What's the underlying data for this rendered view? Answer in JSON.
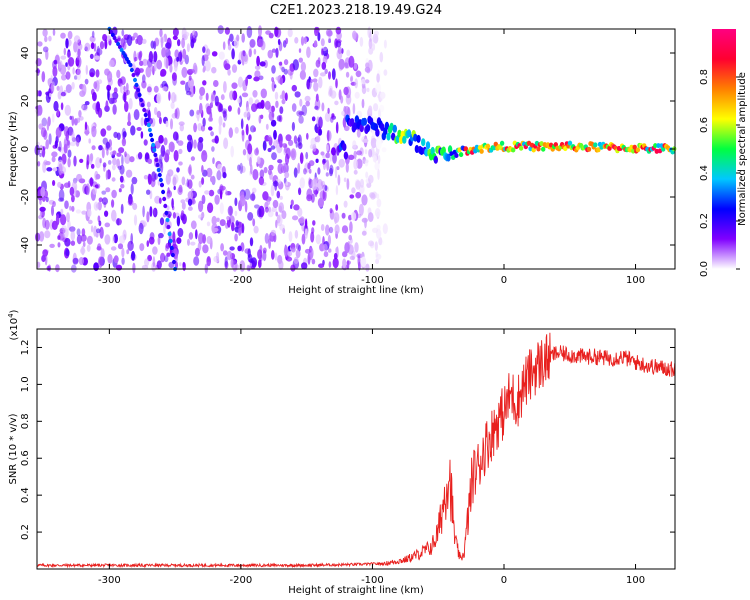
{
  "title": "C2E1.2023.218.19.49.G24",
  "chart_data": [
    {
      "type": "heatmap",
      "xlabel": "Height of straight line (km)",
      "ylabel": "Frequency (Hz)",
      "xlim": [
        -355,
        130
      ],
      "ylim": [
        -50,
        50
      ],
      "xticks": [
        -300,
        -200,
        -100,
        0,
        100
      ],
      "yticks": [
        -40,
        -20,
        0,
        20,
        40
      ],
      "colorbar": {
        "label": "Normalized spectral amplitude",
        "range": [
          0.0,
          1.0
        ],
        "ticks": [
          0.0,
          0.2,
          0.4,
          0.6,
          0.8
        ],
        "colors": [
          "#ffffff",
          "#8000ff",
          "#0000ff",
          "#00c8ff",
          "#00ff40",
          "#ffff00",
          "#ff8000",
          "#ff0030",
          "#ff0080"
        ]
      },
      "features": {
        "diagonal_track": [
          [
            -300,
            50
          ],
          [
            -284,
            35
          ],
          [
            -270,
            10
          ],
          [
            -260,
            -15
          ],
          [
            -250,
            -50
          ]
        ],
        "central_ridge": [
          [
            -120,
            12
          ],
          [
            -90,
            8
          ],
          [
            -70,
            4
          ],
          [
            -60,
            0
          ],
          [
            -45,
            -3
          ],
          [
            -25,
            0
          ],
          [
            0,
            1
          ],
          [
            50,
            1
          ],
          [
            130,
            0
          ]
        ]
      }
    },
    {
      "type": "line",
      "xlabel": "Height of straight line (km)",
      "ylabel": "SNR (10 * v/v)",
      "y_multiplier": "(x10",
      "y_multiplier_exp": "4",
      "y_multiplier_close": ")",
      "xlim": [
        -355,
        130
      ],
      "ylim": [
        0,
        1.3
      ],
      "xticks": [
        -300,
        -200,
        -100,
        0,
        100
      ],
      "yticks": [
        0.2,
        0.4,
        0.6,
        0.8,
        1.0,
        1.2
      ],
      "color": "#e8201e",
      "series": [
        {
          "x": [
            -355,
            -300,
            -250,
            -200,
            -150,
            -110,
            -90,
            -75,
            -65,
            -55,
            -50,
            -45,
            -42,
            -40,
            -38,
            -36,
            -33,
            -30,
            -27,
            -24,
            -20,
            -15,
            -10,
            -5,
            0,
            5,
            10,
            15,
            20,
            25,
            30,
            35,
            40,
            50,
            60,
            70,
            80,
            90,
            100,
            110,
            120,
            130
          ],
          "y": [
            0.02,
            0.02,
            0.02,
            0.02,
            0.02,
            0.025,
            0.03,
            0.05,
            0.08,
            0.12,
            0.2,
            0.4,
            0.55,
            0.4,
            0.2,
            0.12,
            0.05,
            0.1,
            0.3,
            0.5,
            0.55,
            0.65,
            0.72,
            0.8,
            0.85,
            0.95,
            0.9,
            1.0,
            1.05,
            1.1,
            1.12,
            1.15,
            1.17,
            1.16,
            1.15,
            1.15,
            1.14,
            1.15,
            1.12,
            1.1,
            1.09,
            1.08
          ]
        }
      ]
    }
  ]
}
